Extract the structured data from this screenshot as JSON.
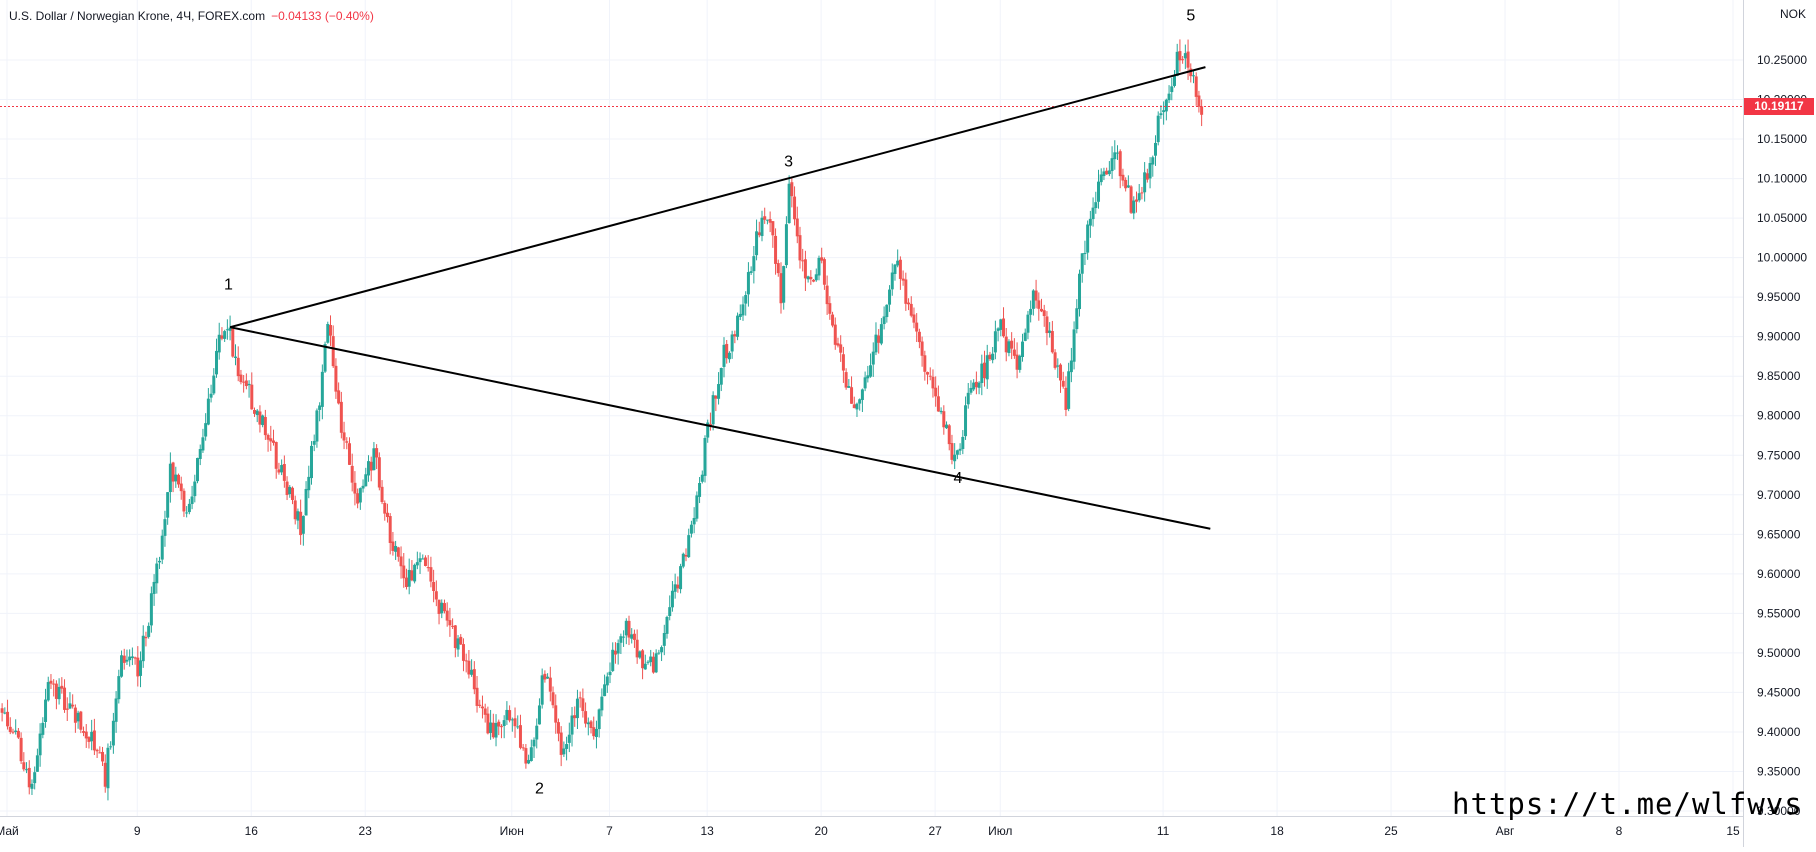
{
  "header": {
    "symbol": "U.S. Dollar / Norwegian Krone, 4Ч, FOREX.com",
    "change": "−0.04133 (−0.40%)"
  },
  "chart_data": {
    "type": "candlestick",
    "unit_label": "NOK",
    "ylim": [
      9.3,
      10.275
    ],
    "y_ticks": [
      "10.25000",
      "10.20000",
      "10.15000",
      "10.10000",
      "10.05000",
      "10.00000",
      "9.95000",
      "9.90000",
      "9.85000",
      "9.80000",
      "9.75000",
      "9.70000",
      "9.65000",
      "9.60000",
      "9.55000",
      "9.50000",
      "9.45000",
      "9.40000",
      "9.35000",
      "9.30000"
    ],
    "x_ticks": [
      {
        "label": "Май",
        "t": 0.3
      },
      {
        "label": "9",
        "t": 8.3
      },
      {
        "label": "16",
        "t": 15.3
      },
      {
        "label": "23",
        "t": 22.3
      },
      {
        "label": "Июн",
        "t": 31.3
      },
      {
        "label": "7",
        "t": 37.3
      },
      {
        "label": "13",
        "t": 43.3
      },
      {
        "label": "20",
        "t": 50.3
      },
      {
        "label": "27",
        "t": 57.3
      },
      {
        "label": "Июл",
        "t": 61.3
      },
      {
        "label": "11",
        "t": 71.3
      },
      {
        "label": "18",
        "t": 78.3
      },
      {
        "label": "25",
        "t": 85.3
      },
      {
        "label": "Авг",
        "t": 92.3
      },
      {
        "label": "8",
        "t": 99.3
      },
      {
        "label": "15",
        "t": 106.3
      }
    ],
    "x_range": [
      0,
      106.5
    ],
    "last_price": "10.19117",
    "last_price_value": 10.19117,
    "price_path": [
      [
        0.0,
        9.43
      ],
      [
        1.0,
        9.4
      ],
      [
        2.0,
        9.33
      ],
      [
        3.0,
        9.47
      ],
      [
        4.0,
        9.44
      ],
      [
        5.5,
        9.4
      ],
      [
        6.5,
        9.34
      ],
      [
        7.5,
        9.5
      ],
      [
        8.5,
        9.48
      ],
      [
        9.5,
        9.58
      ],
      [
        10.5,
        9.73
      ],
      [
        11.5,
        9.68
      ],
      [
        12.5,
        9.76
      ],
      [
        13.3,
        9.88
      ],
      [
        14.0,
        9.91
      ],
      [
        15.0,
        9.84
      ],
      [
        16.0,
        9.8
      ],
      [
        17.5,
        9.72
      ],
      [
        18.5,
        9.66
      ],
      [
        19.5,
        9.8
      ],
      [
        20.2,
        9.91
      ],
      [
        21.0,
        9.78
      ],
      [
        22.0,
        9.7
      ],
      [
        23.0,
        9.75
      ],
      [
        24.0,
        9.65
      ],
      [
        25.0,
        9.59
      ],
      [
        26.0,
        9.62
      ],
      [
        27.0,
        9.56
      ],
      [
        28.0,
        9.52
      ],
      [
        29.0,
        9.47
      ],
      [
        30.0,
        9.4
      ],
      [
        31.5,
        9.42
      ],
      [
        32.5,
        9.36
      ],
      [
        33.5,
        9.48
      ],
      [
        34.5,
        9.37
      ],
      [
        35.5,
        9.44
      ],
      [
        36.5,
        9.4
      ],
      [
        37.5,
        9.48
      ],
      [
        38.5,
        9.54
      ],
      [
        39.5,
        9.48
      ],
      [
        40.5,
        9.49
      ],
      [
        41.5,
        9.58
      ],
      [
        42.5,
        9.65
      ],
      [
        43.5,
        9.78
      ],
      [
        44.5,
        9.88
      ],
      [
        45.5,
        9.92
      ],
      [
        46.5,
        10.02
      ],
      [
        47.2,
        10.06
      ],
      [
        48.0,
        9.95
      ],
      [
        48.5,
        10.09
      ],
      [
        49.5,
        9.97
      ],
      [
        50.5,
        9.99
      ],
      [
        51.5,
        9.88
      ],
      [
        52.5,
        9.81
      ],
      [
        53.5,
        9.86
      ],
      [
        54.5,
        9.95
      ],
      [
        55.0,
        10.0
      ],
      [
        56.0,
        9.93
      ],
      [
        57.0,
        9.85
      ],
      [
        58.0,
        9.79
      ],
      [
        58.7,
        9.74
      ],
      [
        59.5,
        9.82
      ],
      [
        60.5,
        9.86
      ],
      [
        61.5,
        9.91
      ],
      [
        62.5,
        9.86
      ],
      [
        63.5,
        9.95
      ],
      [
        64.5,
        9.9
      ],
      [
        65.5,
        9.82
      ],
      [
        66.5,
        10.0
      ],
      [
        67.5,
        10.09
      ],
      [
        68.5,
        10.13
      ],
      [
        69.5,
        10.07
      ],
      [
        70.5,
        10.1
      ],
      [
        71.5,
        10.2
      ],
      [
        72.0,
        10.23
      ],
      [
        72.8,
        10.27
      ],
      [
        73.3,
        10.23
      ],
      [
        73.7,
        10.19
      ]
    ],
    "trendlines": [
      {
        "from": {
          "t": 14.0,
          "v": 9.912
        },
        "to": {
          "t": 73.9,
          "v": 10.241
        }
      },
      {
        "from": {
          "t": 14.0,
          "v": 9.912
        },
        "to": {
          "t": 74.2,
          "v": 9.657
        }
      }
    ],
    "wave_labels": [
      {
        "text": "1",
        "t": 13.9,
        "v": 9.96
      },
      {
        "text": "2",
        "t": 33.0,
        "v": 9.322
      },
      {
        "text": "3",
        "t": 48.3,
        "v": 10.115
      },
      {
        "text": "4",
        "t": 58.7,
        "v": 9.715
      },
      {
        "text": "5",
        "t": 73.0,
        "v": 10.3
      }
    ]
  },
  "watermark": "https://t.me/wlfwvs",
  "colors": {
    "up": "#26a69a",
    "down": "#ef5350",
    "line": "#000000",
    "grid": "#f0f3fa",
    "last_price": "#f23645"
  }
}
